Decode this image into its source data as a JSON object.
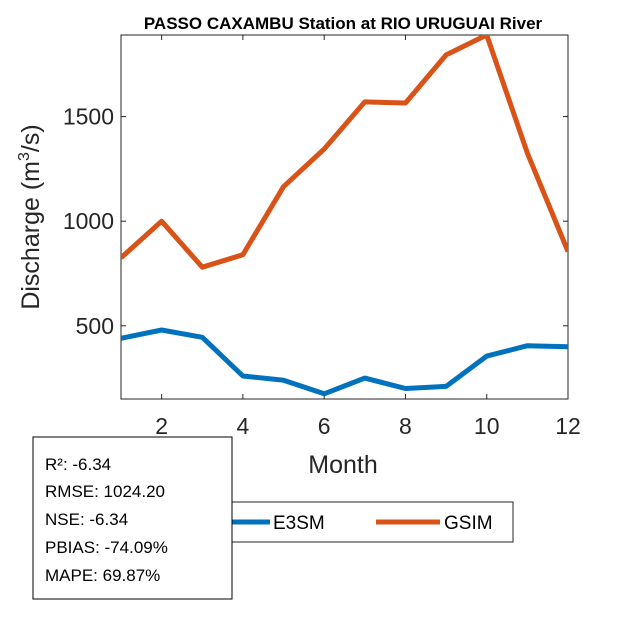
{
  "chart_data": {
    "type": "line",
    "title": "PASSO CAXAMBU  Station at  RIO URUGUAI  River",
    "xlabel": "Month",
    "ylabel_main": "Discharge (m",
    "ylabel_sup": "3",
    "ylabel_end": "/s)",
    "xlim": [
      1,
      12
    ],
    "ylim": [
      150,
      1890
    ],
    "xticks": [
      2,
      4,
      6,
      8,
      10,
      12
    ],
    "yticks": [
      500,
      1000,
      1500
    ],
    "x": [
      1,
      2,
      3,
      4,
      5,
      6,
      7,
      8,
      9,
      10,
      11,
      12
    ],
    "series": [
      {
        "name": "E3SM",
        "color": "#0072BD",
        "values": [
          440,
          480,
          445,
          260,
          240,
          175,
          250,
          200,
          210,
          355,
          405,
          400
        ]
      },
      {
        "name": "GSIM",
        "color": "#D95319",
        "values": [
          825,
          1000,
          780,
          840,
          1165,
          1345,
          1570,
          1565,
          1795,
          1890,
          1325,
          855
        ]
      }
    ],
    "legend": {
      "position": "bottom-right",
      "entries": [
        "E3SM",
        "GSIM"
      ]
    },
    "stats": [
      "R²: -6.34",
      "RMSE: 1024.20",
      "NSE: -6.34",
      "PBIAS: -74.09%",
      "MAPE: 69.87%"
    ]
  }
}
